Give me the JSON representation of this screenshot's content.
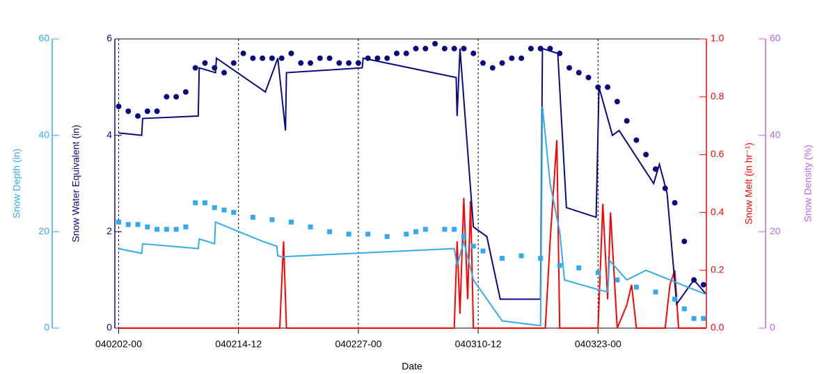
{
  "chart_data": {
    "type": "line",
    "xlabel": "Date",
    "xlim": [
      -0.4,
      61.3
    ],
    "xticks": [
      {
        "value": 0,
        "label": "040202-00"
      },
      {
        "value": 12.5,
        "label": "040214-12"
      },
      {
        "value": 25,
        "label": "040227-00"
      },
      {
        "value": 37.5,
        "label": "040310-12"
      },
      {
        "value": 50,
        "label": "040323-00"
      }
    ],
    "grid": true,
    "axes": [
      {
        "label": "Snow Depth (in)",
        "color": "#33aaee",
        "side": "left-outer",
        "lim": [
          0,
          60
        ],
        "ticks": [
          0,
          20,
          40,
          60
        ]
      },
      {
        "label": "Snow Water Equivalent (in)",
        "color": "#0a0a80",
        "side": "left",
        "lim": [
          0,
          6
        ],
        "ticks": [
          0,
          2,
          4,
          6
        ]
      },
      {
        "label": "Snow Melt (in hr⁻¹)",
        "color": "#ff0000",
        "side": "right",
        "lim": [
          0,
          1
        ],
        "ticks": [
          {
            "value": 0,
            "label": "0.0"
          },
          {
            "value": 0.2,
            "label": "0.2"
          },
          {
            "value": 0.4,
            "label": "0.4"
          },
          {
            "value": 0.6,
            "label": "0.6"
          },
          {
            "value": 0.8,
            "label": "0.8"
          },
          {
            "value": 1,
            "label": "1.0"
          }
        ]
      },
      {
        "label": "Snow Density (%)",
        "color": "#bb66ee",
        "side": "right-outer",
        "lim": [
          0,
          60
        ],
        "ticks": [
          0,
          20,
          40,
          60
        ]
      }
    ],
    "series": [
      {
        "axis": 2,
        "color": "#ff0000",
        "marker": null,
        "x": [
          0,
          16.8,
          17.2,
          17.5,
          35,
          35.3,
          35.6,
          36,
          36.4,
          36.7,
          37,
          44.5,
          45,
          45.7,
          46,
          50,
          50.5,
          51,
          51.3,
          52,
          53,
          53.5,
          54,
          57,
          57.5,
          58,
          58.4,
          61.3
        ],
        "values": [
          0,
          0,
          0.3,
          0,
          0,
          0.3,
          0.05,
          0.45,
          0.1,
          0.44,
          0,
          0,
          0.3,
          0.65,
          0,
          0,
          0.43,
          0.1,
          0.4,
          0,
          0.08,
          0.15,
          0,
          0,
          0.15,
          0.2,
          0,
          0
        ]
      },
      {
        "axis": 1,
        "color": "#0a0a80",
        "marker": null,
        "x": [
          0,
          2.4,
          2.5,
          8.3,
          8.4,
          10.1,
          10.2,
          15.3,
          16.6,
          17.4,
          17.5,
          25.4,
          25.5,
          35.2,
          35.3,
          35.6,
          37,
          38.4,
          39.8,
          44,
          44.2,
          45.8,
          46.7,
          49.8,
          50.1,
          51.5,
          52.2,
          55.8,
          56.4,
          57.2,
          58.2,
          60,
          61.3
        ],
        "values": [
          4.05,
          4.0,
          4.35,
          4.4,
          5.4,
          5.3,
          5.6,
          4.9,
          5.6,
          4.1,
          5.3,
          5.4,
          5.6,
          5.2,
          4.4,
          5.8,
          2.1,
          1.9,
          0.6,
          0.6,
          5.8,
          5.7,
          2.5,
          2.3,
          5.0,
          4.0,
          4.1,
          3.0,
          3.4,
          2.8,
          0.5,
          1.0,
          0.7
        ]
      },
      {
        "axis": 0,
        "color": "#33aaee",
        "marker": null,
        "x": [
          0,
          2.4,
          2.5,
          8.3,
          8.4,
          10,
          10.1,
          15,
          16.5,
          16.6,
          17,
          35,
          35.3,
          36,
          37,
          40,
          44,
          44.2,
          45,
          46,
          46.5,
          50,
          51,
          51.2,
          53,
          55,
          60,
          61.3
        ],
        "values": [
          16.5,
          15.5,
          17.5,
          16.5,
          18.5,
          17.5,
          22,
          18,
          17,
          15,
          14.8,
          16.5,
          13,
          18,
          10,
          1.5,
          0.5,
          46,
          30,
          20,
          10,
          8,
          7.5,
          14,
          10,
          12,
          8,
          7
        ]
      },
      {
        "axis": 0,
        "color": "#33aaee",
        "marker": "square",
        "x": [
          0,
          1,
          2,
          3,
          4,
          5,
          6,
          7,
          8,
          9,
          10,
          11,
          12,
          14,
          16,
          18,
          20,
          22,
          24,
          26,
          28,
          30,
          31,
          32,
          34,
          35,
          36,
          37,
          38,
          40,
          42,
          44,
          46,
          48,
          50,
          52,
          54,
          56,
          58,
          59,
          60,
          61
        ],
        "values": [
          22,
          21.5,
          21.5,
          21,
          20.5,
          20.5,
          20.5,
          21,
          26,
          26,
          25,
          24.5,
          24,
          23,
          22.5,
          22,
          21,
          20,
          19.5,
          19.5,
          19,
          19.5,
          20,
          20.5,
          20.5,
          20.5,
          19,
          17,
          16,
          14.5,
          15,
          14.5,
          13,
          12.5,
          11.5,
          10,
          8.5,
          7.5,
          6,
          4,
          2,
          2
        ]
      },
      {
        "axis": 1,
        "color": "#0a0a80",
        "marker": "circle",
        "x": [
          0,
          1,
          2,
          3,
          4,
          5,
          6,
          7,
          8,
          9,
          10,
          11,
          12,
          13,
          14,
          15,
          16,
          17,
          18,
          19,
          20,
          21,
          22,
          23,
          24,
          25,
          26,
          27,
          28,
          29,
          30,
          31,
          32,
          33,
          34,
          35,
          36,
          37,
          38,
          39,
          40,
          41,
          42,
          43,
          44,
          45,
          46,
          47,
          48,
          49,
          50,
          51,
          52,
          53,
          54,
          55,
          56,
          57,
          58,
          59,
          60,
          61
        ],
        "values": [
          4.6,
          4.5,
          4.4,
          4.5,
          4.5,
          4.8,
          4.8,
          4.9,
          5.4,
          5.5,
          5.4,
          5.3,
          5.5,
          5.7,
          5.6,
          5.6,
          5.6,
          5.6,
          5.7,
          5.5,
          5.5,
          5.6,
          5.6,
          5.5,
          5.5,
          5.5,
          5.6,
          5.6,
          5.6,
          5.7,
          5.7,
          5.8,
          5.8,
          5.9,
          5.8,
          5.8,
          5.8,
          5.7,
          5.5,
          5.4,
          5.5,
          5.6,
          5.6,
          5.8,
          5.8,
          5.8,
          5.7,
          5.4,
          5.3,
          5.2,
          5.0,
          5.0,
          4.7,
          4.3,
          3.9,
          3.6,
          3.3,
          2.9,
          2.6,
          1.8,
          1.0,
          0.9
        ]
      }
    ]
  }
}
